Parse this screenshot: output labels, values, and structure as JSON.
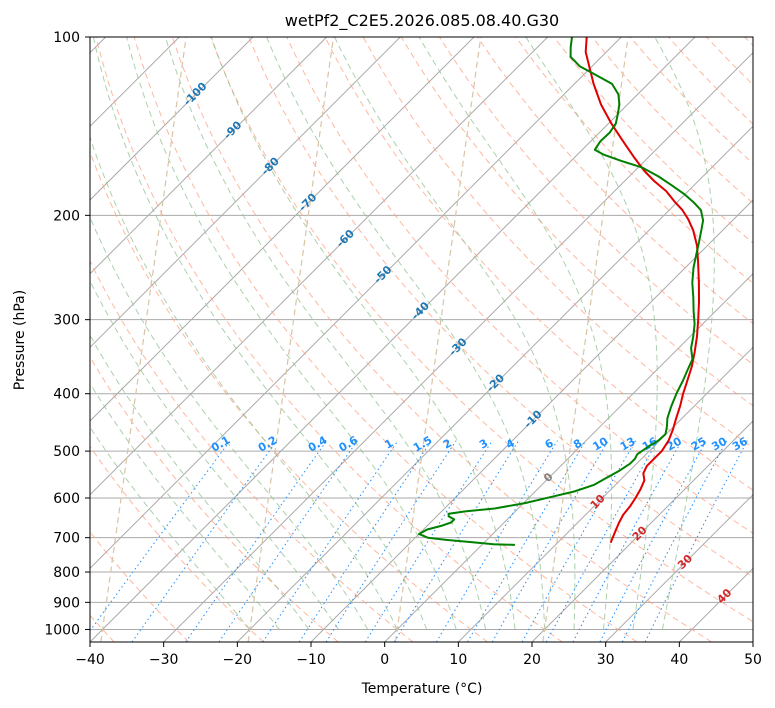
{
  "chart_data": {
    "type": "line",
    "title": "wetPf2_C2E5.2026.085.08.40.G30",
    "xlabel": "Temperature (°C)",
    "ylabel": "Pressure (hPa)",
    "xlim": [
      -40,
      50
    ],
    "ylim": [
      1050,
      100
    ],
    "y_scale": "log",
    "x_ticks": [
      "−40",
      "−30",
      "−20",
      "−10",
      "0",
      "10",
      "20",
      "30",
      "40",
      "50"
    ],
    "y_ticks": [
      "100",
      "200",
      "300",
      "400",
      "500",
      "600",
      "700",
      "800",
      "900",
      "1000"
    ],
    "x_tick_values": [
      -40,
      -30,
      -20,
      -10,
      0,
      10,
      20,
      30,
      40,
      50
    ],
    "y_tick_values": [
      100,
      200,
      300,
      400,
      500,
      600,
      700,
      800,
      900,
      1000
    ],
    "grid": true,
    "series": [
      {
        "color": "#e00000",
        "points": [
          [
            714,
            17.2
          ],
          [
            690,
            16.5
          ],
          [
            660,
            15.6
          ],
          [
            640,
            15.1
          ],
          [
            620,
            14.9
          ],
          [
            600,
            14.5
          ],
          [
            580,
            14.0
          ],
          [
            560,
            13.3
          ],
          [
            545,
            12.2
          ],
          [
            530,
            11.7
          ],
          [
            515,
            11.7
          ],
          [
            500,
            11.7
          ],
          [
            480,
            11.2
          ],
          [
            460,
            10.3
          ],
          [
            440,
            9.2
          ],
          [
            420,
            8.1
          ],
          [
            400,
            6.8
          ],
          [
            380,
            5.6
          ],
          [
            360,
            4.3
          ],
          [
            340,
            2.7
          ],
          [
            320,
            0.9
          ],
          [
            300,
            -1.2
          ],
          [
            280,
            -3.5
          ],
          [
            260,
            -6.1
          ],
          [
            240,
            -9.0
          ],
          [
            225,
            -11.4
          ],
          [
            212,
            -14.0
          ],
          [
            203,
            -16.2
          ],
          [
            196,
            -18.2
          ],
          [
            190,
            -20.3
          ],
          [
            182,
            -23.0
          ],
          [
            175,
            -26.0
          ],
          [
            168,
            -28.8
          ],
          [
            160,
            -31.8
          ],
          [
            150,
            -35.6
          ],
          [
            140,
            -39.6
          ],
          [
            130,
            -43.6
          ],
          [
            120,
            -47.4
          ],
          [
            112,
            -50.4
          ],
          [
            106,
            -52.8
          ],
          [
            100,
            -54.7
          ]
        ]
      },
      {
        "color": "#008000",
        "points": [
          [
            720,
            4.5
          ],
          [
            718,
            1.5
          ],
          [
            712,
            -2.0
          ],
          [
            706,
            -5.5
          ],
          [
            700,
            -8.3
          ],
          [
            690,
            -10.0
          ],
          [
            678,
            -9.5
          ],
          [
            668,
            -8.0
          ],
          [
            660,
            -7.2
          ],
          [
            652,
            -7.2
          ],
          [
            644,
            -8.4
          ],
          [
            638,
            -8.7
          ],
          [
            632,
            -6.8
          ],
          [
            625,
            -3.2
          ],
          [
            612,
            0.2
          ],
          [
            598,
            2.8
          ],
          [
            585,
            5.3
          ],
          [
            570,
            7.1
          ],
          [
            555,
            7.8
          ],
          [
            540,
            8.6
          ],
          [
            525,
            9.1
          ],
          [
            515,
            9.1
          ],
          [
            506,
            8.8
          ],
          [
            500,
            9.0
          ],
          [
            490,
            9.3
          ],
          [
            480,
            9.8
          ],
          [
            468,
            9.9
          ],
          [
            455,
            9.1
          ],
          [
            440,
            8.0
          ],
          [
            420,
            6.9
          ],
          [
            400,
            5.9
          ],
          [
            380,
            5.0
          ],
          [
            365,
            4.2
          ],
          [
            350,
            3.4
          ],
          [
            335,
            1.7
          ],
          [
            320,
            0.4
          ],
          [
            305,
            -1.1
          ],
          [
            290,
            -3.0
          ],
          [
            275,
            -4.9
          ],
          [
            260,
            -7.0
          ],
          [
            245,
            -8.9
          ],
          [
            232,
            -10.4
          ],
          [
            222,
            -11.6
          ],
          [
            212,
            -12.9
          ],
          [
            204,
            -14.0
          ],
          [
            196,
            -15.7
          ],
          [
            190,
            -17.8
          ],
          [
            184,
            -20.2
          ],
          [
            178,
            -23.0
          ],
          [
            172,
            -26.0
          ],
          [
            166,
            -29.5
          ],
          [
            162,
            -33.1
          ],
          [
            158,
            -36.4
          ],
          [
            155,
            -38.3
          ],
          [
            150,
            -38.7
          ],
          [
            145,
            -38.6
          ],
          [
            140,
            -39.0
          ],
          [
            135,
            -40.0
          ],
          [
            130,
            -41.1
          ],
          [
            125,
            -42.6
          ],
          [
            120,
            -44.9
          ],
          [
            116,
            -48.2
          ],
          [
            112,
            -51.7
          ],
          [
            108,
            -54.2
          ],
          [
            104,
            -55.5
          ],
          [
            100,
            -56.7
          ]
        ]
      }
    ],
    "annotations": {
      "isotherm_labels": [
        "-100",
        "-90",
        "-80",
        "-70",
        "-60",
        "-50",
        "-40",
        "-30",
        "-20",
        "-10",
        "0",
        "10",
        "20",
        "30",
        "40"
      ],
      "mixing_ratio_labels": [
        "0.1",
        "0.2",
        "0.4",
        "0.6",
        "1",
        "1.5",
        "2",
        "3",
        "4",
        "6",
        "8",
        "10",
        "13",
        "16",
        "20",
        "25",
        "30",
        "36"
      ]
    },
    "colors": {
      "temperature": "#e00000",
      "dewpoint": "#008000",
      "isotherm_label": "#1f77b4",
      "warm_isotherm_label": "#d62728",
      "zero_isotherm_label": "#808080",
      "mixing_ratio": "#1e90ff",
      "dry_adiabat": "#ff9f80",
      "moist_adiabat": "#90c090",
      "isotherm": "#aaaaaa",
      "curved_isotherm": "#d9c4a6"
    }
  }
}
